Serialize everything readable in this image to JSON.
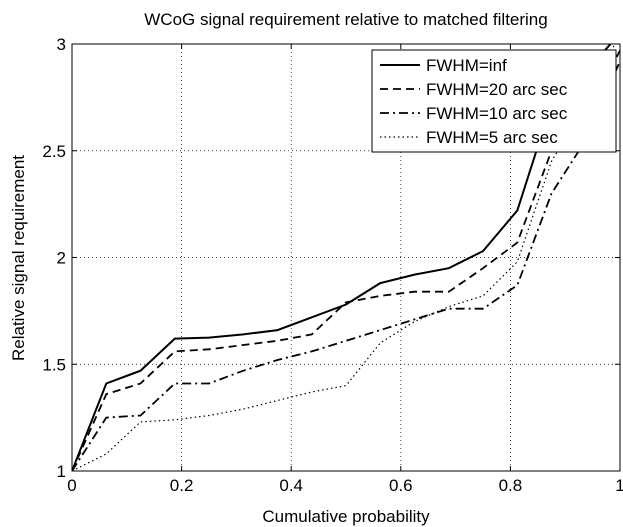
{
  "chart_data": {
    "type": "line",
    "title": "WCoG signal requirement relative to matched filtering",
    "xlabel": "Cumulative probability",
    "ylabel": "Relative signal requirement",
    "xlim": [
      0,
      1
    ],
    "ylim": [
      1,
      3
    ],
    "xticks": [
      0,
      0.2,
      0.4,
      0.6,
      0.8,
      1
    ],
    "yticks": [
      1,
      1.5,
      2,
      2.5,
      3
    ],
    "xtick_labels": [
      "0",
      "0.2",
      "0.4",
      "0.6",
      "0.8",
      "1"
    ],
    "ytick_labels": [
      "1",
      "1.5",
      "2",
      "2.5",
      "3"
    ],
    "grid": true,
    "legend_position": "top-right",
    "series": [
      {
        "name": "FWHM=inf",
        "style": "solid",
        "x": [
          0,
          0.0625,
          0.125,
          0.1875,
          0.25,
          0.3125,
          0.375,
          0.4375,
          0.5,
          0.5625,
          0.625,
          0.6875,
          0.75,
          0.8125,
          0.875,
          0.9375,
          1.0
        ],
        "y": [
          1.0,
          1.41,
          1.47,
          1.62,
          1.625,
          1.64,
          1.66,
          1.72,
          1.78,
          1.88,
          1.92,
          1.95,
          2.03,
          2.22,
          2.72,
          2.87,
          3.05
        ]
      },
      {
        "name": "FWHM=20 arc sec",
        "style": "dashed",
        "x": [
          0,
          0.0625,
          0.125,
          0.1875,
          0.25,
          0.3125,
          0.375,
          0.4375,
          0.5,
          0.5625,
          0.625,
          0.6875,
          0.75,
          0.8125,
          0.875,
          0.9375,
          1.0
        ],
        "y": [
          1.0,
          1.36,
          1.41,
          1.56,
          1.57,
          1.59,
          1.61,
          1.64,
          1.79,
          1.82,
          1.84,
          1.84,
          1.95,
          2.07,
          2.5,
          2.65,
          2.97
        ]
      },
      {
        "name": "FWHM=10 arc sec",
        "style": "dashdot",
        "x": [
          0,
          0.0625,
          0.125,
          0.1875,
          0.25,
          0.3125,
          0.375,
          0.4375,
          0.5,
          0.5625,
          0.625,
          0.6875,
          0.75,
          0.8125,
          0.875,
          0.9375,
          1.0
        ],
        "y": [
          1.0,
          1.25,
          1.26,
          1.41,
          1.41,
          1.47,
          1.52,
          1.56,
          1.61,
          1.66,
          1.71,
          1.76,
          1.76,
          1.87,
          2.3,
          2.55,
          2.92
        ]
      },
      {
        "name": "FWHM=5 arc sec",
        "style": "dotted",
        "x": [
          0,
          0.0625,
          0.125,
          0.1875,
          0.25,
          0.3125,
          0.375,
          0.4375,
          0.5,
          0.5625,
          0.625,
          0.6875,
          0.75,
          0.8125,
          0.875,
          0.9375,
          1.0
        ],
        "y": [
          1.0,
          1.08,
          1.23,
          1.24,
          1.26,
          1.29,
          1.33,
          1.37,
          1.4,
          1.6,
          1.7,
          1.77,
          1.82,
          1.98,
          2.45,
          2.72,
          3.05
        ]
      }
    ]
  }
}
